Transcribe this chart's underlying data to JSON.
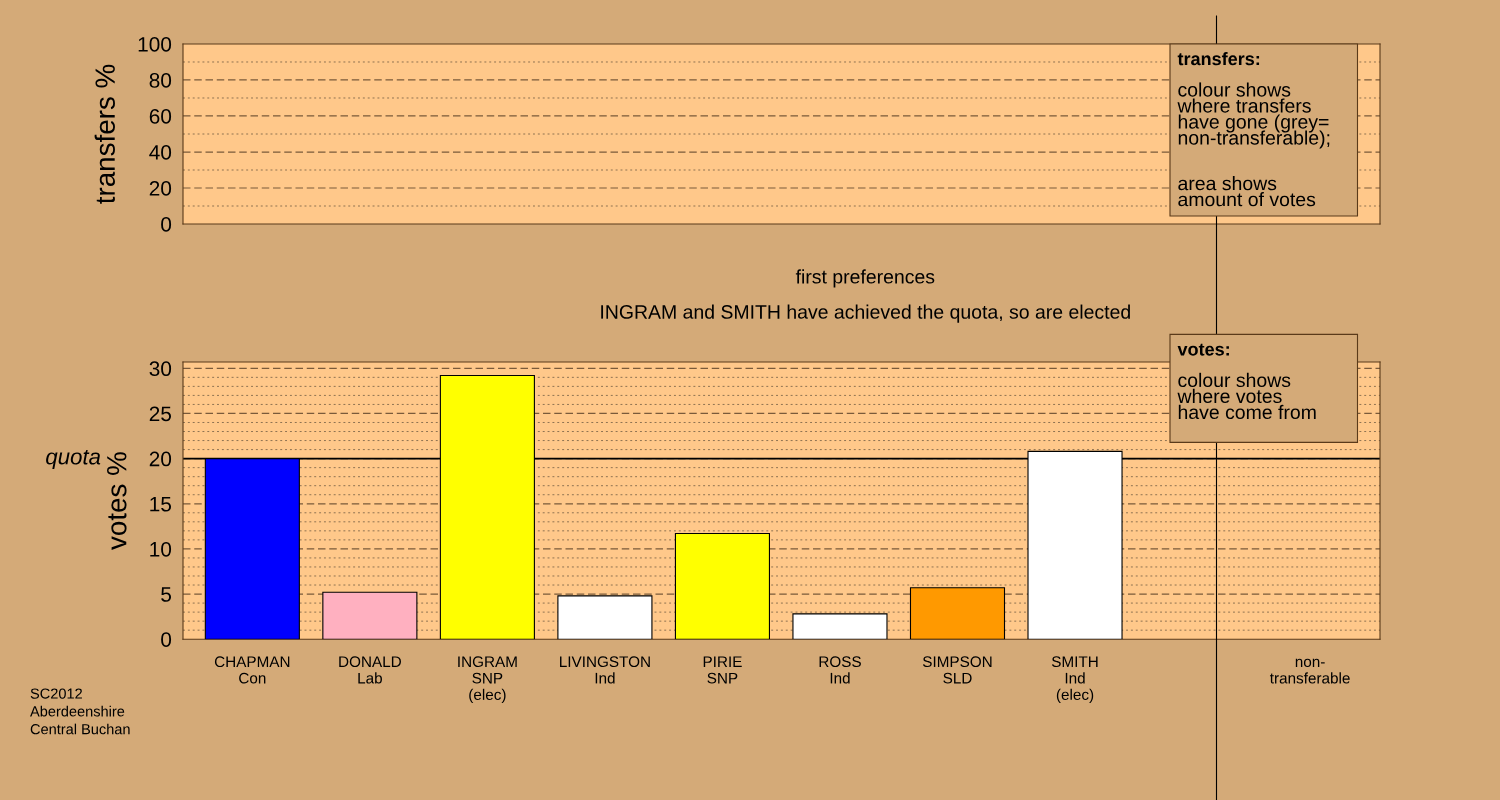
{
  "chart_data": [
    {
      "type": "bar",
      "ylabel": "transfers %",
      "categories": [
        null,
        null,
        null,
        null,
        null,
        null,
        null,
        null,
        null,
        null
      ],
      "values": [
        null,
        null,
        null,
        null,
        null,
        null,
        null,
        null,
        null,
        null
      ],
      "ylim": [
        0,
        100
      ],
      "yticks": [
        0,
        {
          "value": 10,
          "label": null
        },
        20,
        {
          "value": 30,
          "label": null
        },
        40,
        {
          "value": 50,
          "label": null
        },
        60,
        {
          "value": 70,
          "label": null
        },
        80,
        {
          "value": 90,
          "label": null
        },
        100
      ],
      "grid": "y",
      "tick_labels": "y",
      "annotations": [
        "transfers:",
        "colour shows\nwhere transfers\nhave gone (grey=\nnon-transferable);",
        "area shows\namount of votes"
      ]
    },
    {
      "type": "bar",
      "title": "first preferences",
      "subtitle": "INGRAM and SMITH have achieved the quota, so are elected",
      "ylabel": "votes %",
      "categories": [
        "CHAPMAN\nCon",
        "DONALD\nLab",
        "INGRAM\nSNP\n(elec)",
        "LIVINGSTON\nInd",
        "PIRIE\nSNP",
        "ROSS\nInd",
        "SIMPSON\nSLD",
        "SMITH\nInd\n(elec)",
        null,
        "non-\ntransferable"
      ],
      "values": [
        20.0,
        5.2,
        29.2,
        4.8,
        11.7,
        2.8,
        5.7,
        20.8,
        null,
        null
      ],
      "colors": [
        "#0000ff",
        "#ffb0c0",
        "#ffff00",
        "#ffffff",
        "#ffff00",
        "#ffffff",
        "#ff9900",
        "#ffffff",
        "#ffffff",
        "#ffffff"
      ],
      "ylim": [
        0,
        30.7
      ],
      "yticks": [
        0,
        {
          "value": 1,
          "label": null
        },
        {
          "value": 2,
          "label": null
        },
        {
          "value": 3,
          "label": null
        },
        {
          "value": 4,
          "label": null
        },
        5,
        {
          "value": 6,
          "label": null
        },
        {
          "value": 7,
          "label": null
        },
        {
          "value": 8,
          "label": null
        },
        {
          "value": 9,
          "label": null
        },
        10,
        {
          "value": 11,
          "label": null
        },
        {
          "value": 12,
          "label": null
        },
        {
          "value": 13,
          "label": null
        },
        {
          "value": 14,
          "label": null
        },
        15,
        {
          "value": 16,
          "label": null
        },
        {
          "value": 17,
          "label": null
        },
        {
          "value": 18,
          "label": null
        },
        {
          "value": 19,
          "label": null
        },
        20,
        {
          "value": 21,
          "label": null
        },
        {
          "value": 22,
          "label": null
        },
        {
          "value": 23,
          "label": null
        },
        {
          "value": 24,
          "label": null
        },
        25,
        {
          "value": 26,
          "label": null
        },
        {
          "value": 27,
          "label": null
        },
        {
          "value": 28,
          "label": null
        },
        {
          "value": 29,
          "label": null
        },
        30
      ],
      "grid": "y",
      "ref_lines": [
        {
          "axis": "y",
          "value": 20,
          "label": "quota",
          "color": "#000000"
        }
      ],
      "annotations": [
        "votes:",
        "colour shows\nwhere votes\nhave come from",
        "SC2012\nAberdeenshire\nCentral Buchan"
      ]
    }
  ]
}
